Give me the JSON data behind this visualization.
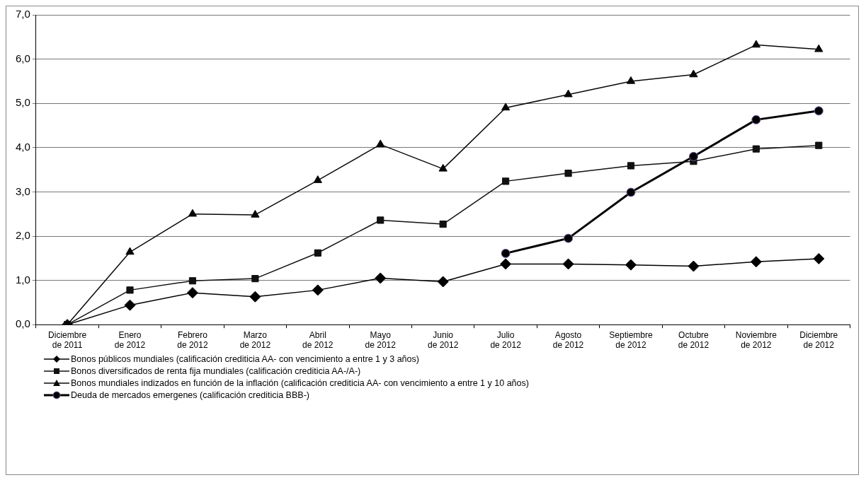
{
  "chart_data": {
    "type": "line",
    "categories": [
      "Diciembre de 2011",
      "Enero de 2012",
      "Febrero de 2012",
      "Marzo de 2012",
      "Abril de 2012",
      "Mayo de 2012",
      "Junio de 2012",
      "Julio de 2012",
      "Agosto de 2012",
      "Septiembre de 2012",
      "Octubre de 2012",
      "Noviembre de 2012",
      "Diciembre de 2012"
    ],
    "series": [
      {
        "name": "Bonos públicos mundiales (calificación crediticia AA- con vencimiento a entre 1 y 3 años)",
        "color": "#000000",
        "marker": "diamond",
        "values": [
          0,
          0.44,
          0.72,
          0.63,
          0.78,
          1.05,
          0.97,
          1.37,
          1.37,
          1.35,
          1.32,
          1.42,
          1.49
        ]
      },
      {
        "name": "Bonos diversificados de renta fija mundiales (calificación crediticia AA-/A-)",
        "color": "#111111",
        "marker": "square",
        "values": [
          0,
          0.78,
          0.99,
          1.04,
          1.62,
          2.36,
          2.27,
          3.24,
          3.42,
          3.59,
          3.69,
          3.97,
          4.05
        ]
      },
      {
        "name": "Bonos mundiales indizados en función de la inflación (calificación crediticia AA- con vencimiento a entre 1 y 10 años)",
        "color": "#080808",
        "marker": "triangle",
        "values": [
          0,
          1.64,
          2.5,
          2.48,
          3.26,
          4.07,
          3.52,
          4.9,
          5.2,
          5.5,
          5.65,
          6.32,
          6.22
        ]
      },
      {
        "name": "Deuda de mercados emergenes (calificación crediticia BBB-)",
        "color": "#000000",
        "marker": "circle",
        "values": [
          null,
          null,
          null,
          null,
          null,
          null,
          null,
          1.61,
          1.95,
          2.99,
          3.8,
          4.63,
          4.83
        ]
      }
    ],
    "ylim": [
      0,
      7
    ],
    "yticks": [
      {
        "value": 0,
        "label": "0,0"
      },
      {
        "value": 1,
        "label": "1,0"
      },
      {
        "value": 2,
        "label": "2,0"
      },
      {
        "value": 3,
        "label": "3,0"
      },
      {
        "value": 4,
        "label": "4,0"
      },
      {
        "value": 5,
        "label": "5,0"
      },
      {
        "value": 6,
        "label": "6,0"
      },
      {
        "value": 7,
        "label": "7,0"
      }
    ],
    "grid": "y",
    "legend": "bottom"
  }
}
